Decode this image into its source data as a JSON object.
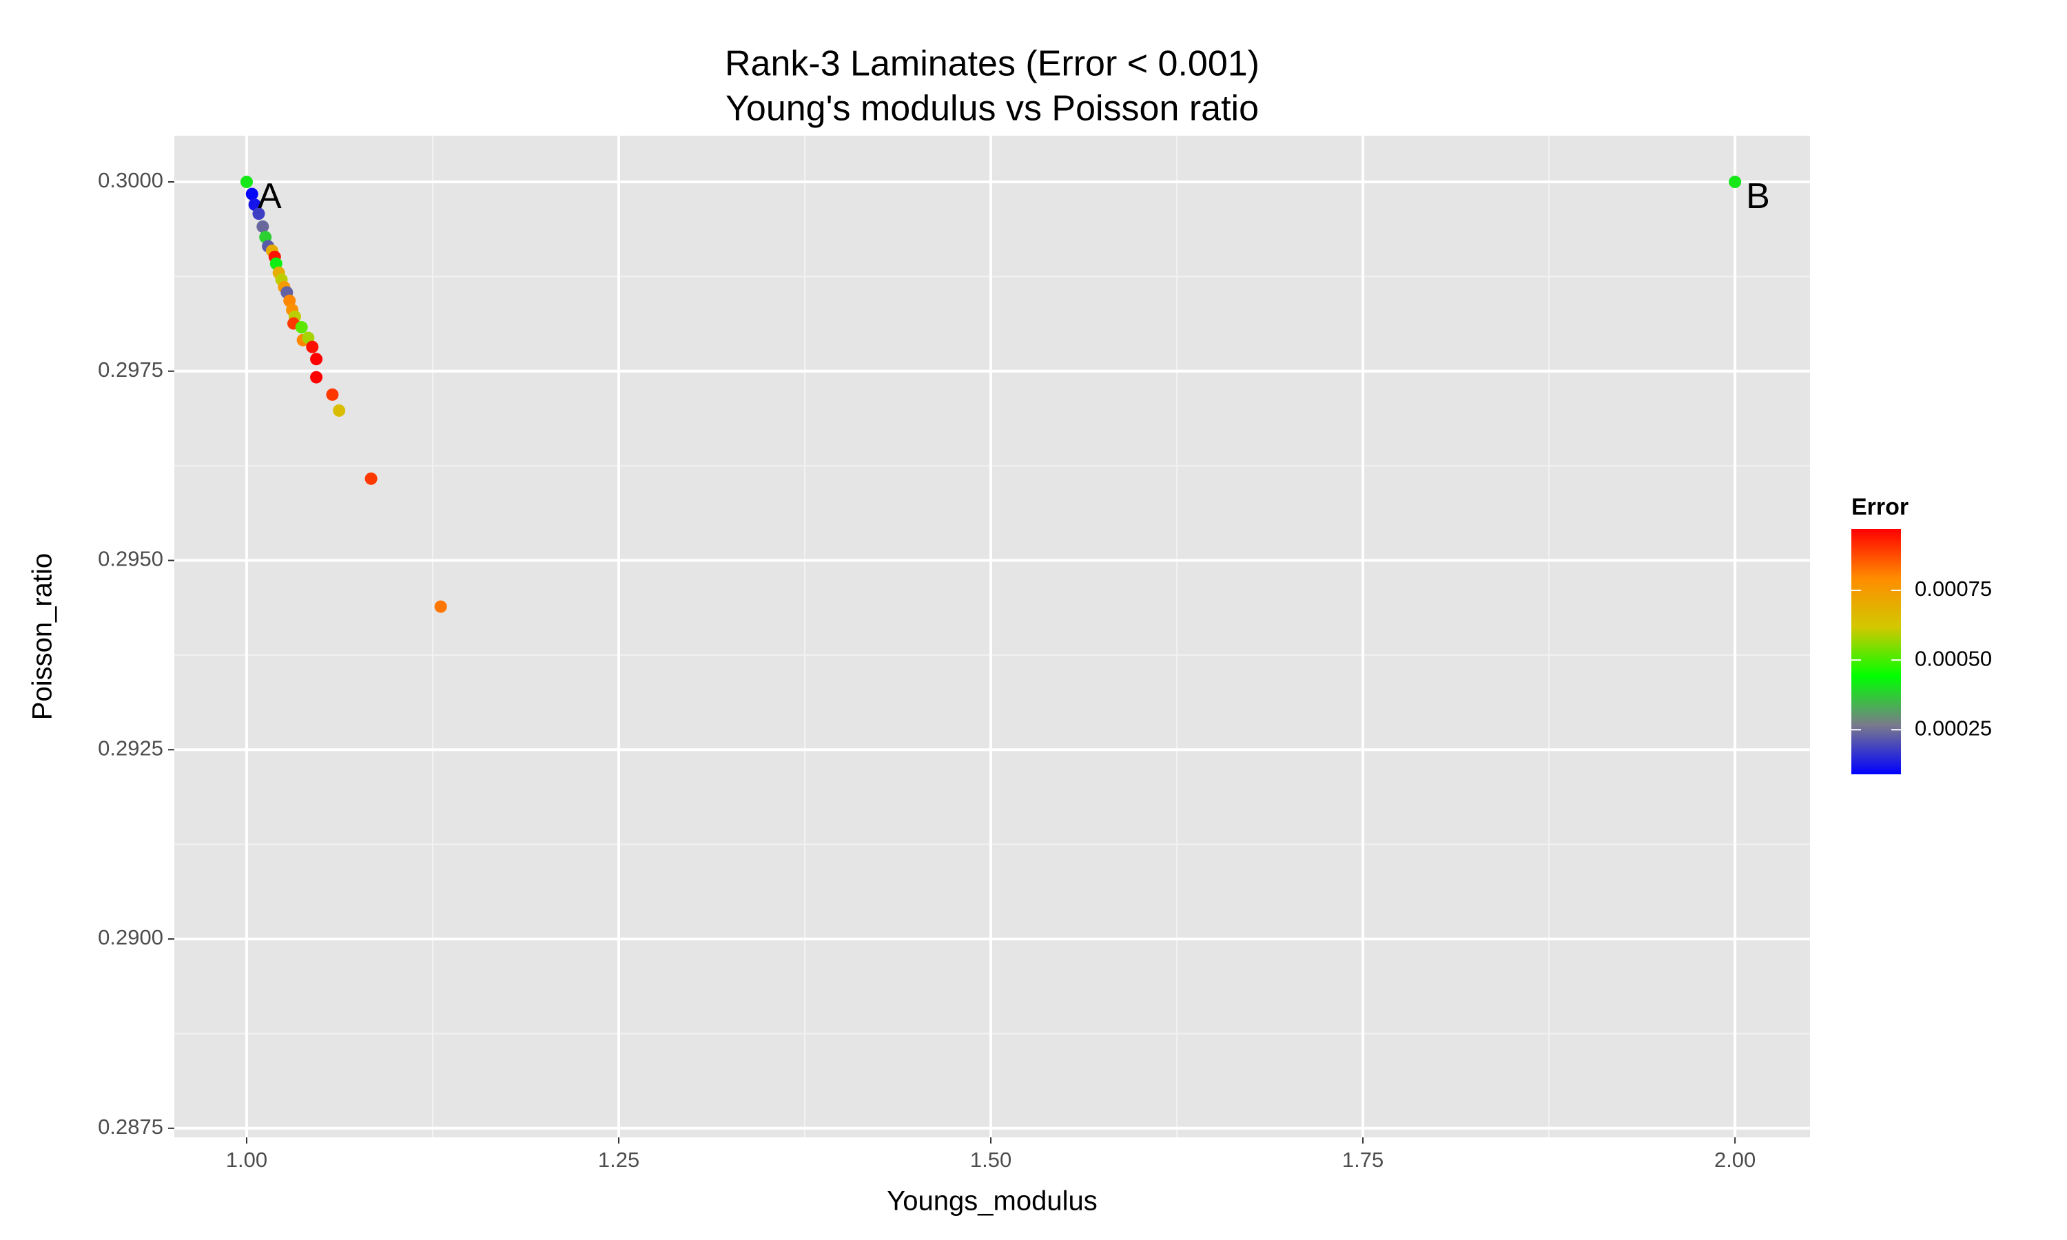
{
  "chart_data": {
    "type": "scatter",
    "title": "Rank-3 Laminates (Error < 0.001)",
    "subtitle": "Young's modulus vs Poisson ratio",
    "x_label": "Youngs_modulus",
    "y_label": "Poisson_ratio",
    "x": [
      1.0,
      2.0,
      1.0036,
      1.0054,
      1.0081,
      1.0108,
      1.0126,
      1.0144,
      1.0171,
      1.0189,
      1.0198,
      1.0216,
      1.0234,
      1.0252,
      1.027,
      1.0288,
      1.0306,
      1.0324,
      1.0315,
      1.0369,
      1.0378,
      1.0414,
      1.0441,
      1.0468,
      1.0468,
      1.0576,
      1.0621,
      1.0836,
      1.1304
    ],
    "y": [
      0.3,
      0.3,
      0.29984,
      0.2997,
      0.29958,
      0.29941,
      0.29927,
      0.29915,
      0.29909,
      0.29901,
      0.29892,
      0.2988,
      0.29871,
      0.29861,
      0.29854,
      0.29843,
      0.29831,
      0.29822,
      0.29813,
      0.29808,
      0.29791,
      0.29794,
      0.29782,
      0.29766,
      0.29742,
      0.29719,
      0.29698,
      0.29608,
      0.29439
    ],
    "color_values": [
      0.00041,
      0.00041,
      0.0001,
      0.00012,
      0.00018,
      0.00024,
      0.00038,
      0.00022,
      0.0007,
      0.00095,
      0.00042,
      0.0007,
      0.0006,
      0.00075,
      0.00023,
      0.0008,
      0.00078,
      0.0006,
      0.0009,
      0.00052,
      0.0008,
      0.00058,
      0.00095,
      0.00097,
      0.00097,
      0.0009,
      0.00065,
      0.0009,
      0.00082
    ],
    "color_label": "Error",
    "colorscale": [
      "#0000ff",
      "#7a7a8c",
      "#00ff00",
      "#d2c800",
      "#ff8c00",
      "#ff0000"
    ],
    "clim": [
      9e-05,
      0.00097
    ],
    "cticks": [
      {
        "value": 0.00025,
        "label": "0.00025"
      },
      {
        "value": 0.0005,
        "label": "0.00050"
      },
      {
        "value": 0.00075,
        "label": "0.00075"
      }
    ],
    "annotations": [
      {
        "text": "A",
        "x": 1.0,
        "y": 0.3
      },
      {
        "text": "B",
        "x": 2.0,
        "y": 0.3
      }
    ],
    "xlim": [
      0.9514,
      2.0504
    ],
    "ylim": [
      0.28738,
      0.30061
    ],
    "xticks": [
      {
        "value": 1.0,
        "label": "1.00"
      },
      1.25,
      {
        "value": 1.5,
        "label": "1.50"
      },
      1.75,
      {
        "value": 2.0,
        "label": "2.00"
      }
    ],
    "yticks": [
      {
        "value": 0.3,
        "label": "0.3000"
      },
      0.2975,
      {
        "value": 0.295,
        "label": "0.2950"
      },
      0.2925,
      {
        "value": 0.29,
        "label": "0.2900"
      },
      0.2875
    ],
    "grid": true
  }
}
